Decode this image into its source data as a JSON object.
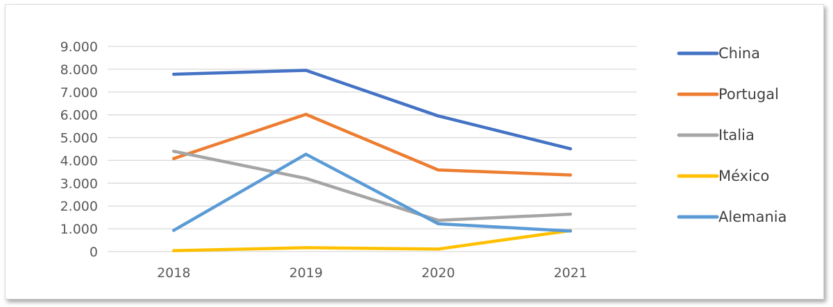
{
  "chart_data": {
    "type": "line",
    "title": "",
    "xlabel": "",
    "ylabel": "",
    "categories": [
      "2018",
      "2019",
      "2020",
      "2021"
    ],
    "ylim": [
      0,
      9000
    ],
    "yticks": [
      0,
      1000,
      2000,
      3000,
      4000,
      5000,
      6000,
      7000,
      8000,
      9000
    ],
    "ytick_labels": [
      "0",
      "1.000",
      "2.000",
      "3.000",
      "4.000",
      "5.000",
      "6.000",
      "7.000",
      "8.000",
      "9.000"
    ],
    "grid": "horizontal",
    "legend_position": "right",
    "series": [
      {
        "name": "China",
        "color": "#4472C4",
        "values": [
          7780,
          7950,
          5950,
          4510
        ]
      },
      {
        "name": "Portugal",
        "color": "#ED7D31",
        "values": [
          4080,
          6020,
          3580,
          3360
        ]
      },
      {
        "name": "Italia",
        "color": "#A5A5A5",
        "values": [
          4400,
          3210,
          1370,
          1640
        ]
      },
      {
        "name": "México",
        "color": "#FFC000",
        "values": [
          40,
          170,
          110,
          920
        ]
      },
      {
        "name": "Alemania",
        "color": "#5B9BD5",
        "values": [
          930,
          4270,
          1220,
          900
        ]
      }
    ]
  }
}
